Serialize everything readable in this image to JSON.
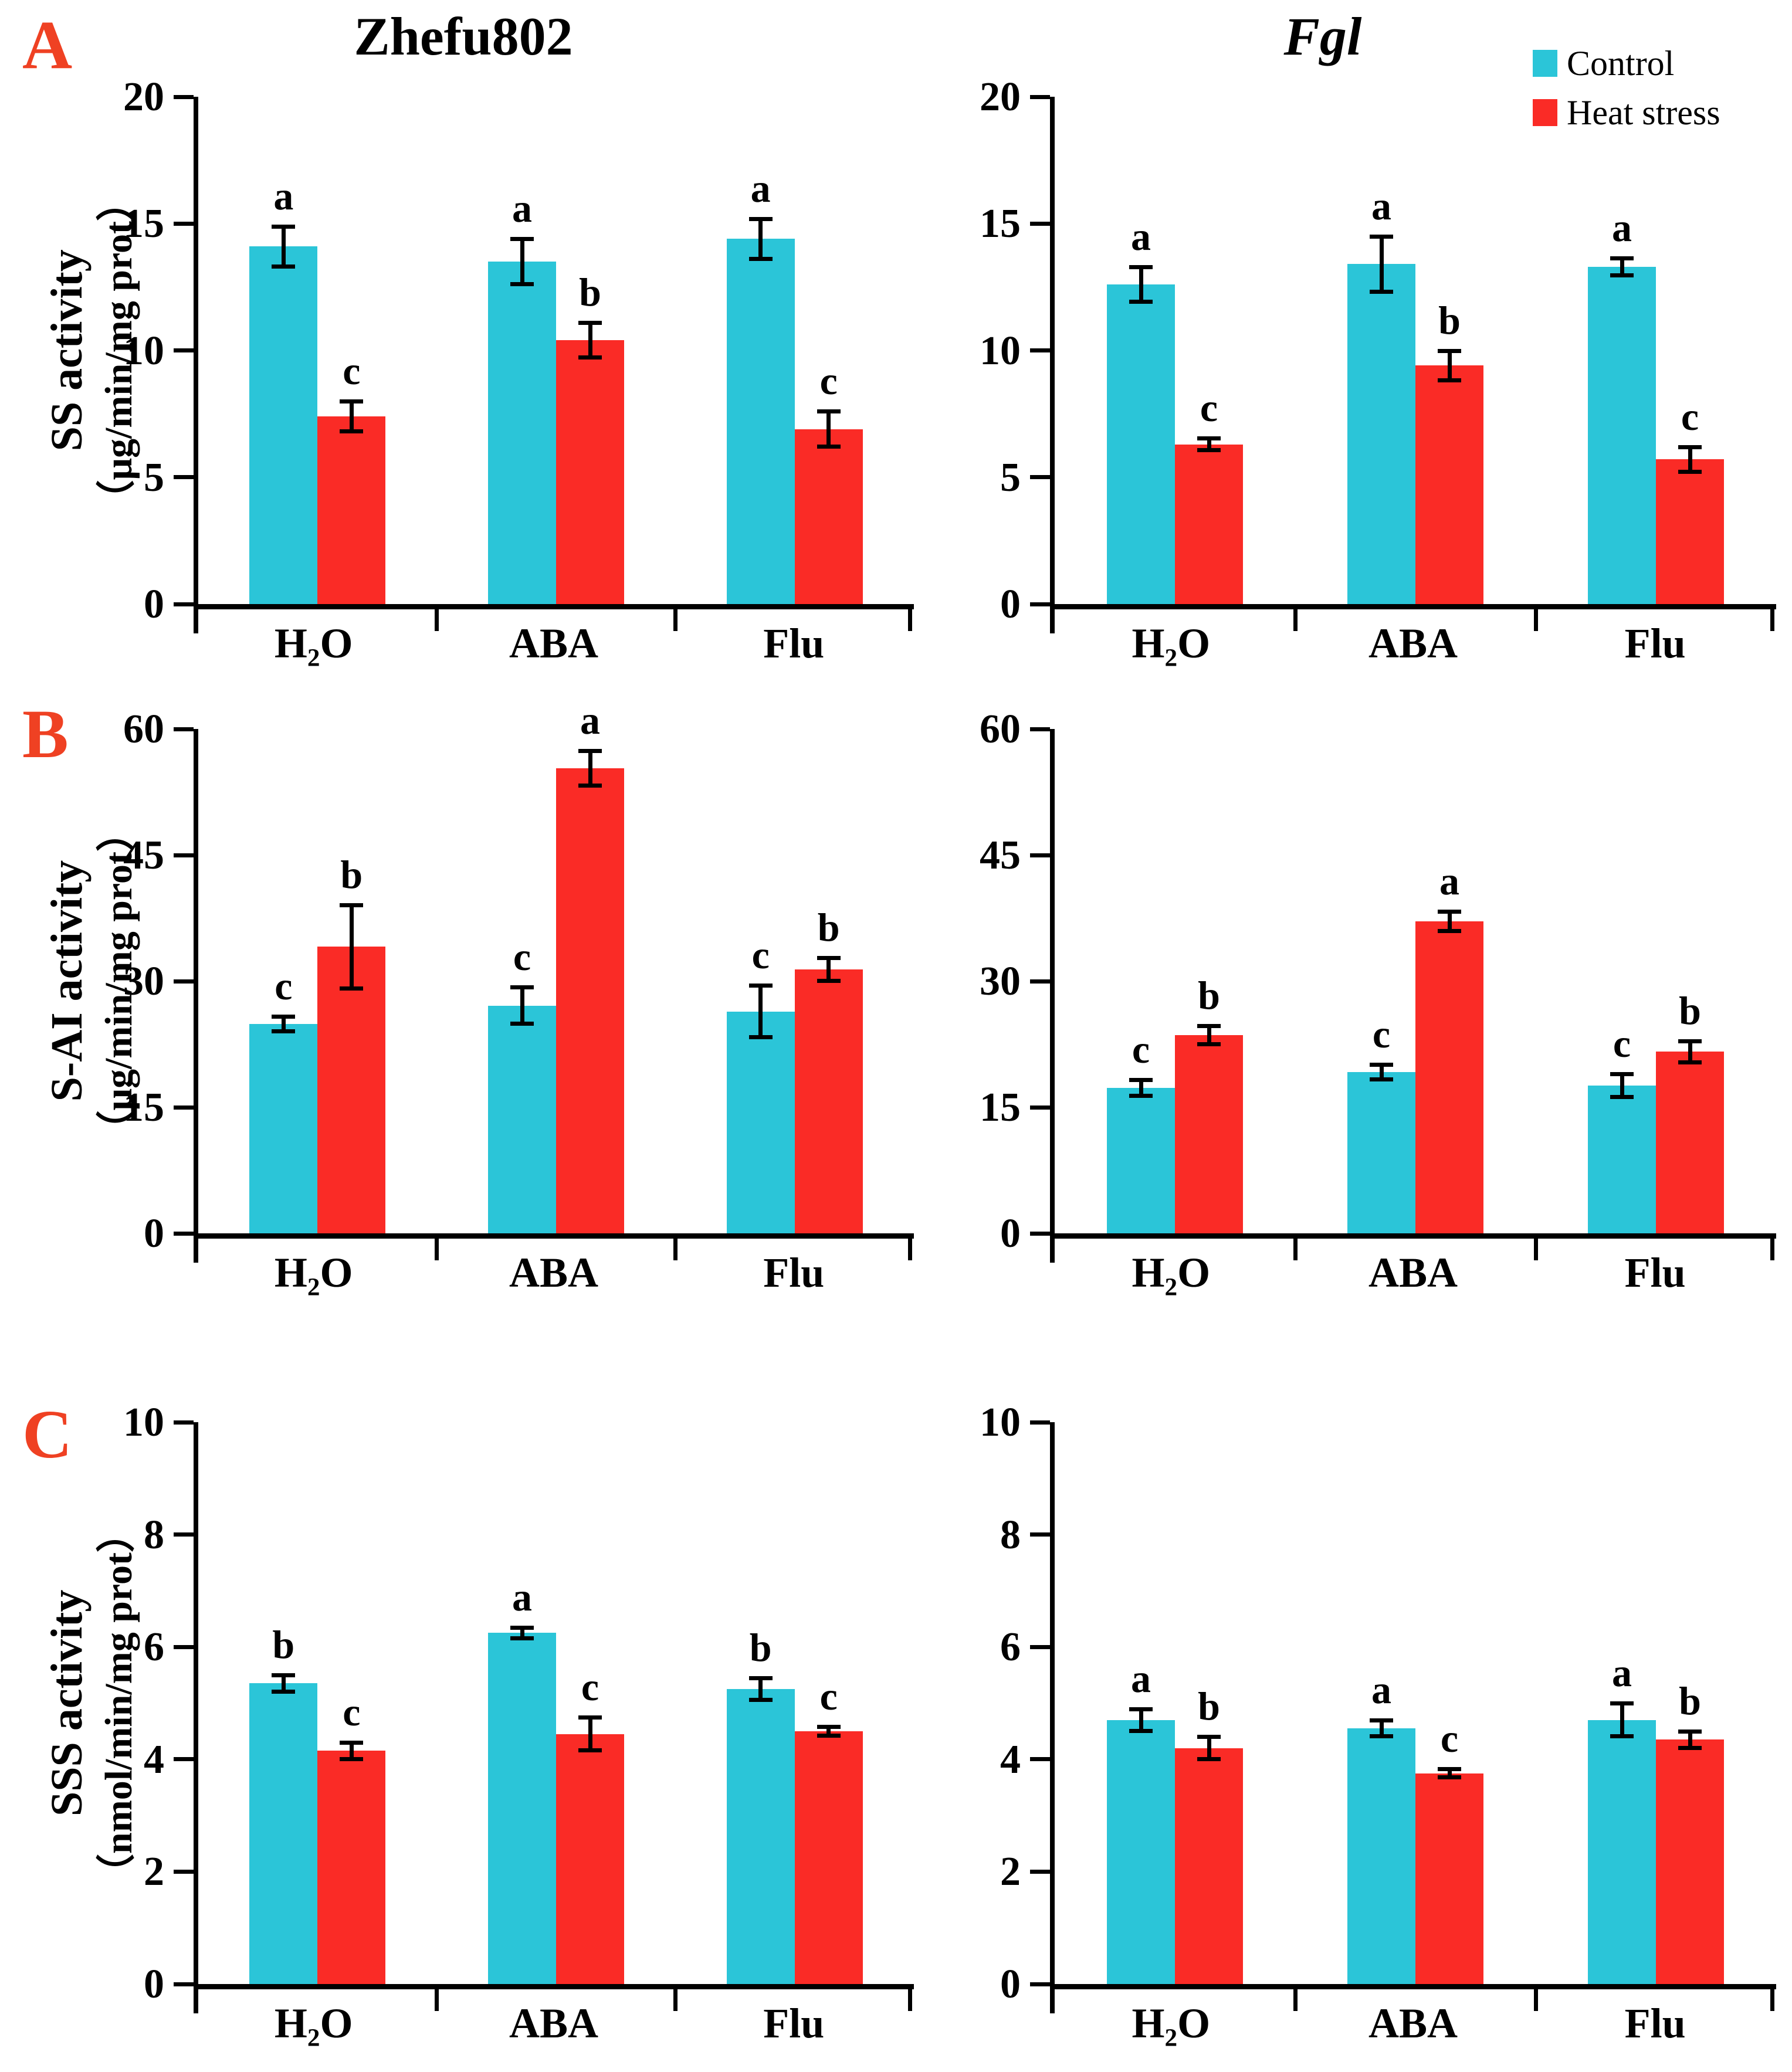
{
  "panel_labels": [
    "A",
    "B",
    "C"
  ],
  "column_titles": [
    "Zhefu802",
    "Fgl"
  ],
  "colors": {
    "control": "#2BC5D8",
    "heat_stress": "#FA2B26",
    "panel_letter": "#EF4123",
    "axis": "#000000",
    "background": "#FFFFFF"
  },
  "legend": {
    "position": "top-right",
    "items": [
      {
        "label": "Control",
        "color": "#2BC5D8"
      },
      {
        "label": "Heat stress",
        "color": "#FA2B26"
      }
    ]
  },
  "chart_data": [
    {
      "type": "bar",
      "panel": "A",
      "variety": "Zhefu802",
      "ylabel": "SS activity",
      "yunits": "（μg/min/mg prot）",
      "ylim": [
        0,
        20
      ],
      "yticks": [
        0,
        5,
        10,
        15,
        20
      ],
      "grid": false,
      "categories": [
        "H₂O",
        "ABA",
        "Flu"
      ],
      "series": [
        {
          "name": "Control",
          "color": "#2BC5D8",
          "values": [
            14.1,
            13.5,
            14.4
          ],
          "errors": [
            0.8,
            0.9,
            0.8
          ],
          "letters": [
            "a",
            "a",
            "a"
          ]
        },
        {
          "name": "Heat stress",
          "color": "#FA2B26",
          "values": [
            7.4,
            10.4,
            6.9
          ],
          "errors": [
            0.6,
            0.7,
            0.7
          ],
          "letters": [
            "c",
            "b",
            "c"
          ]
        }
      ]
    },
    {
      "type": "bar",
      "panel": "A",
      "variety": "Fgl",
      "ylabel": "SS activity",
      "yunits": "（μg/min/mg prot）",
      "ylim": [
        0,
        20
      ],
      "yticks": [
        0,
        5,
        10,
        15,
        20
      ],
      "grid": false,
      "categories": [
        "H₂O",
        "ABA",
        "Flu"
      ],
      "series": [
        {
          "name": "Control",
          "color": "#2BC5D8",
          "values": [
            12.6,
            13.4,
            13.3
          ],
          "errors": [
            0.7,
            1.1,
            0.35
          ],
          "letters": [
            "a",
            "a",
            "a"
          ]
        },
        {
          "name": "Heat stress",
          "color": "#FA2B26",
          "values": [
            6.3,
            9.4,
            5.7
          ],
          "errors": [
            0.25,
            0.6,
            0.5
          ],
          "letters": [
            "c",
            "b",
            "c"
          ]
        }
      ]
    },
    {
      "type": "bar",
      "panel": "B",
      "variety": "Zhefu802",
      "ylabel": "S-AI activity",
      "yunits": "（μg/min/mg prot）",
      "ylim": [
        0,
        60
      ],
      "yticks": [
        0,
        15,
        30,
        45,
        60
      ],
      "grid": false,
      "categories": [
        "H₂O",
        "ABA",
        "Flu"
      ],
      "series": [
        {
          "name": "Control",
          "color": "#2BC5D8",
          "values": [
            24.9,
            27.1,
            26.4
          ],
          "errors": [
            0.9,
            2.2,
            3.1
          ],
          "letters": [
            "c",
            "c",
            "c"
          ]
        },
        {
          "name": "Heat stress",
          "color": "#FA2B26",
          "values": [
            34.1,
            55.3,
            31.4
          ],
          "errors": [
            5.0,
            2.1,
            1.4
          ],
          "letters": [
            "b",
            "a",
            "b"
          ]
        }
      ]
    },
    {
      "type": "bar",
      "panel": "B",
      "variety": "Fgl",
      "ylabel": "S-AI activity",
      "yunits": "（μg/min/mg prot）",
      "ylim": [
        0,
        60
      ],
      "yticks": [
        0,
        15,
        30,
        45,
        60
      ],
      "grid": false,
      "categories": [
        "H₂O",
        "ABA",
        "Flu"
      ],
      "series": [
        {
          "name": "Control",
          "color": "#2BC5D8",
          "values": [
            17.3,
            19.2,
            17.6
          ],
          "errors": [
            1.0,
            0.9,
            1.4
          ],
          "letters": [
            "c",
            "c",
            "c"
          ]
        },
        {
          "name": "Heat stress",
          "color": "#FA2B26",
          "values": [
            23.6,
            37.1,
            21.6
          ],
          "errors": [
            1.1,
            1.2,
            1.3
          ],
          "letters": [
            "b",
            "a",
            "b"
          ]
        }
      ]
    },
    {
      "type": "bar",
      "panel": "C",
      "variety": "Zhefu802",
      "ylabel": "SSS activity",
      "yunits": "（nmol/min/mg prot）",
      "ylim": [
        0,
        10
      ],
      "yticks": [
        0,
        2,
        4,
        6,
        8,
        10
      ],
      "grid": false,
      "categories": [
        "H₂O",
        "ABA",
        "Flu"
      ],
      "series": [
        {
          "name": "Control",
          "color": "#2BC5D8",
          "values": [
            5.35,
            6.25,
            5.25
          ],
          "errors": [
            0.15,
            0.1,
            0.2
          ],
          "letters": [
            "b",
            "a",
            "b"
          ]
        },
        {
          "name": "Heat stress",
          "color": "#FA2B26",
          "values": [
            4.15,
            4.45,
            4.5
          ],
          "errors": [
            0.15,
            0.3,
            0.08
          ],
          "letters": [
            "c",
            "c",
            "c"
          ]
        }
      ]
    },
    {
      "type": "bar",
      "panel": "C",
      "variety": "Fgl",
      "ylabel": "SSS activity",
      "yunits": "（nmol/min/mg prot）",
      "ylim": [
        0,
        10
      ],
      "yticks": [
        0,
        2,
        4,
        6,
        8,
        10
      ],
      "grid": false,
      "categories": [
        "H₂O",
        "ABA",
        "Flu"
      ],
      "series": [
        {
          "name": "Control",
          "color": "#2BC5D8",
          "values": [
            4.7,
            4.55,
            4.7
          ],
          "errors": [
            0.2,
            0.15,
            0.3
          ],
          "letters": [
            "a",
            "a",
            "a"
          ]
        },
        {
          "name": "Heat stress",
          "color": "#FA2B26",
          "values": [
            4.2,
            3.75,
            4.35
          ],
          "errors": [
            0.2,
            0.08,
            0.15
          ],
          "letters": [
            "b",
            "c",
            "b"
          ]
        }
      ]
    }
  ]
}
